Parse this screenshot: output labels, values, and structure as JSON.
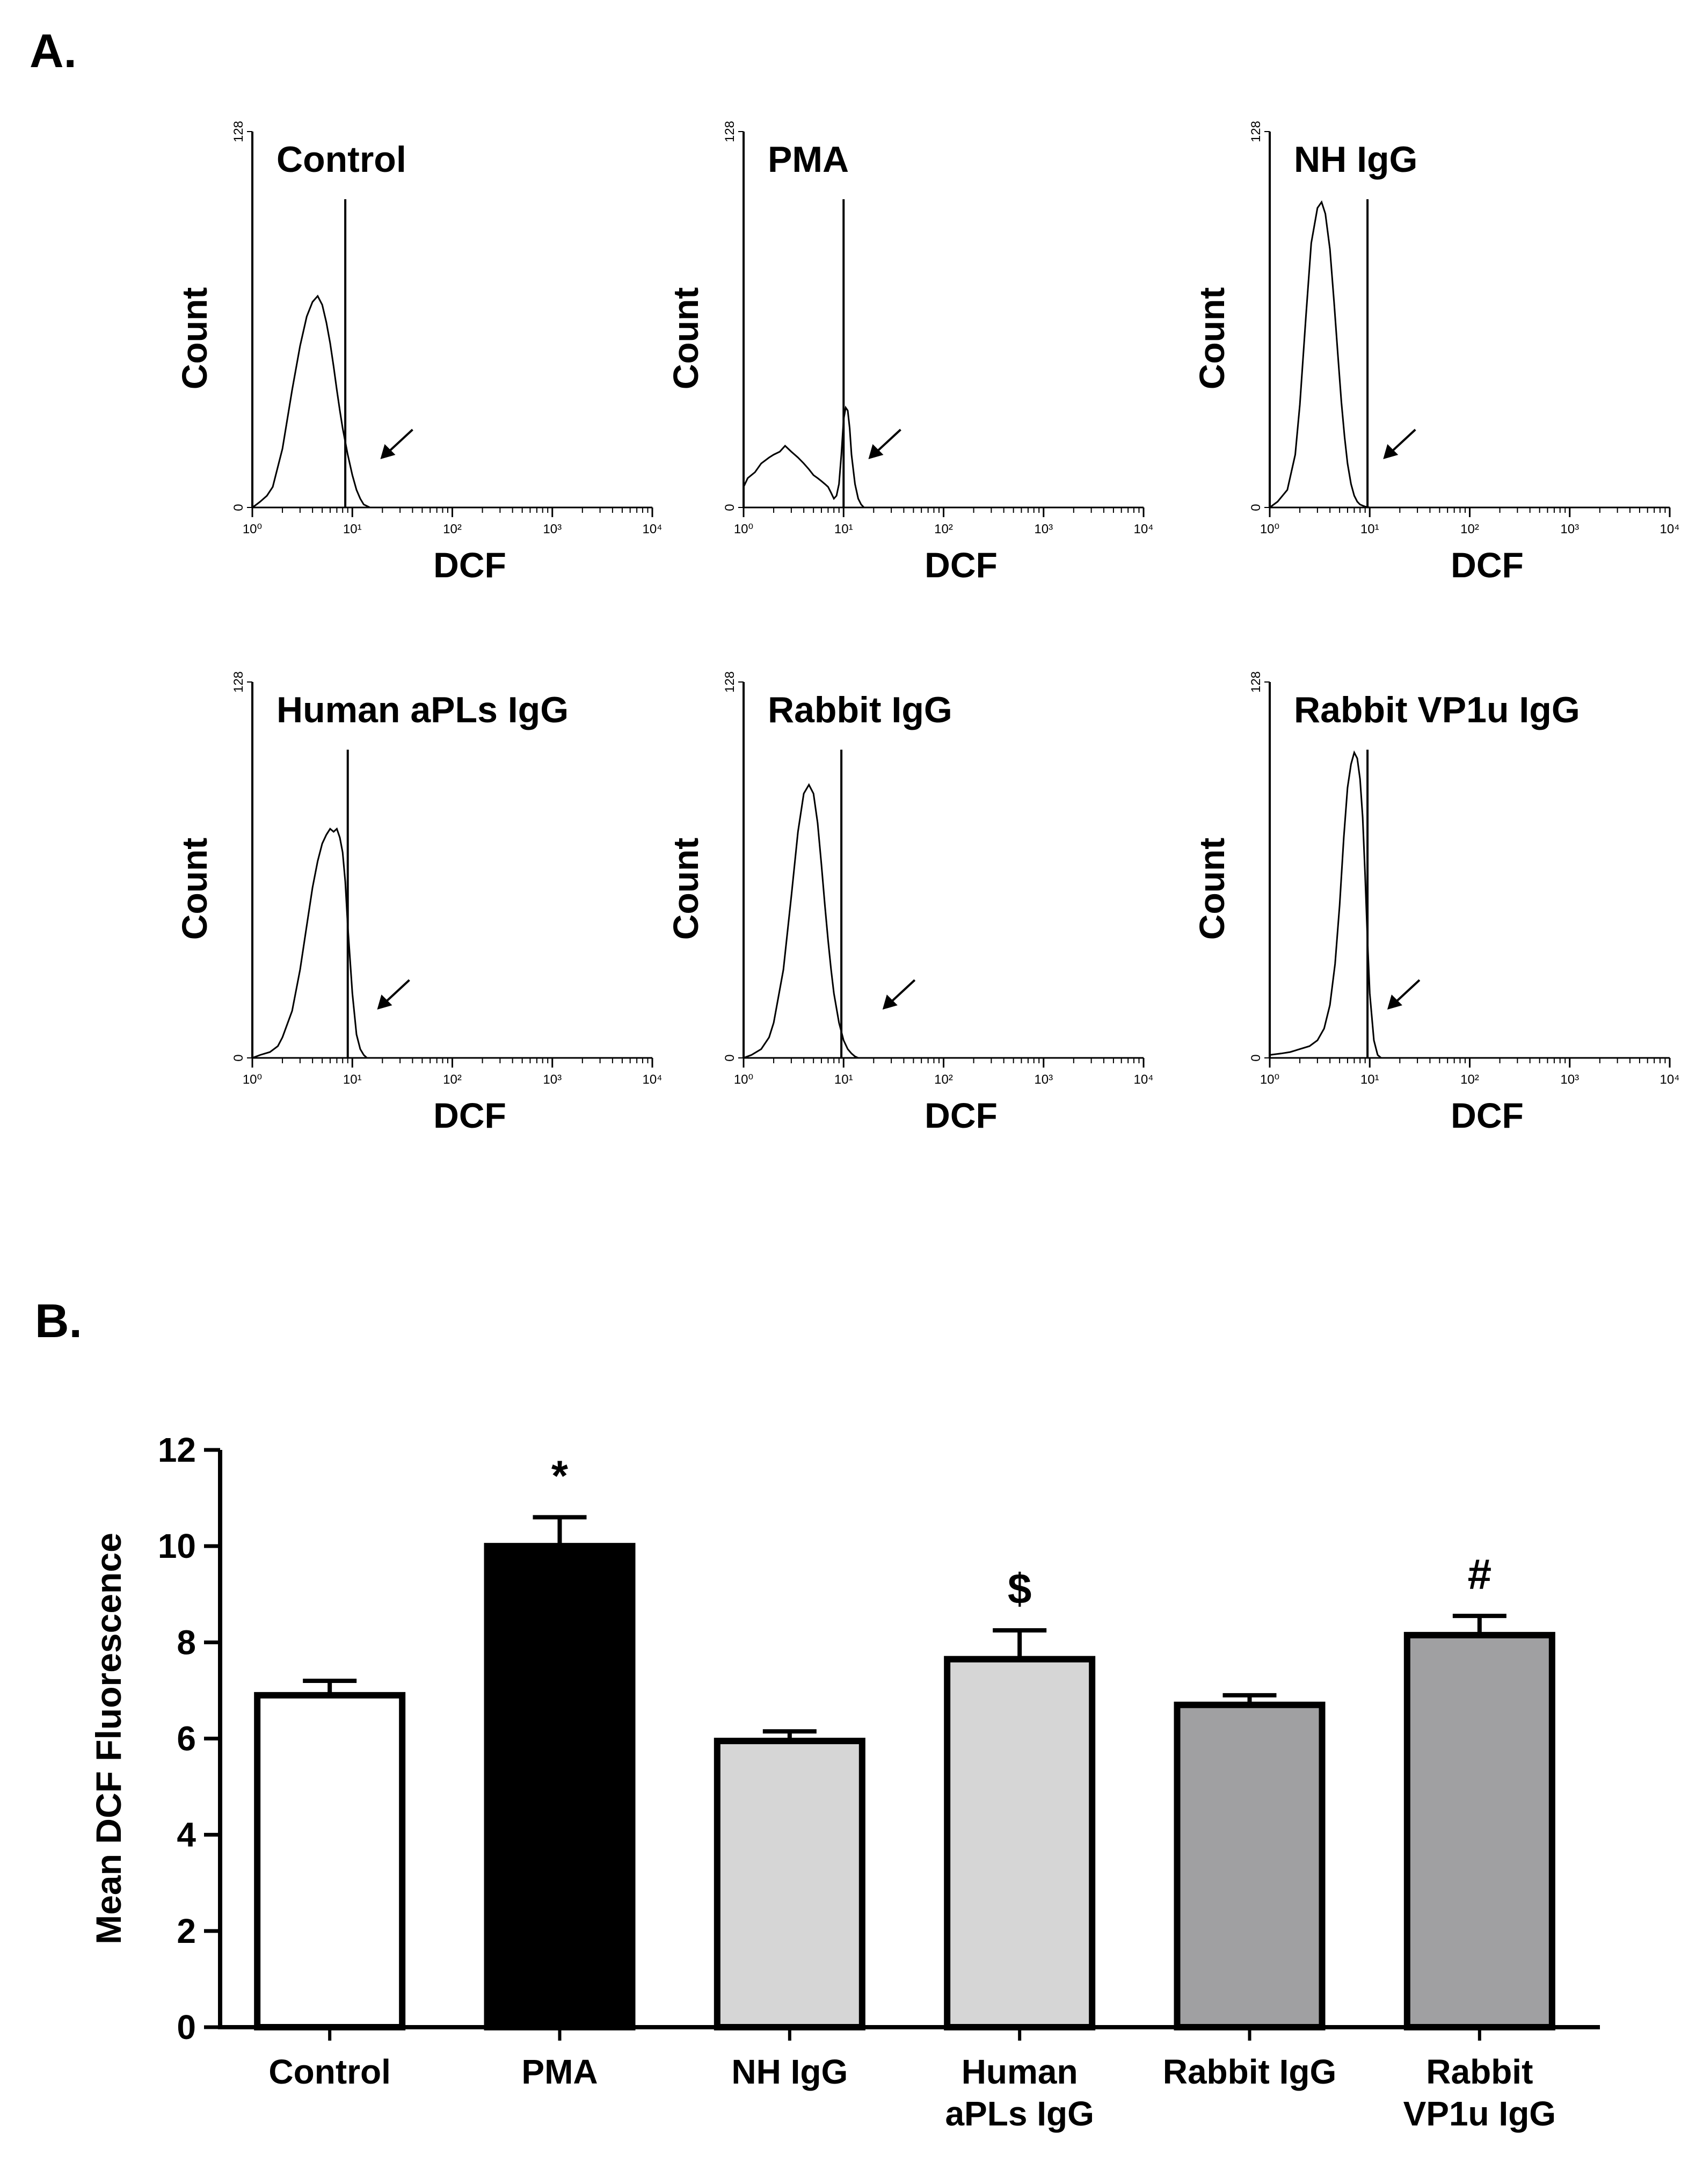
{
  "panel_a_label": "A.",
  "panel_b_label": "B.",
  "chart_data": [
    {
      "type": "line",
      "title": "Control",
      "xlabel": "DCF",
      "ylabel": "Count",
      "x_scale": "log",
      "xlim": [
        1,
        10000
      ],
      "ylim": [
        0,
        128
      ],
      "x_ticks": [
        "10⁰",
        "10¹",
        "10²",
        "10³",
        "10⁴"
      ],
      "y_ticks": [
        "0",
        "128"
      ],
      "gate": 8.5,
      "arrow_at": 14,
      "series": [
        {
          "x": [
            1.0,
            1.1,
            1.2,
            1.4,
            1.6,
            2.0,
            2.5,
            3.0,
            3.5,
            4.0,
            4.5,
            5.0,
            5.5,
            6.0,
            6.5,
            7.0,
            7.5,
            8.0,
            9.0,
            10.0,
            11.0,
            12.0,
            13.0,
            14.0,
            15.0
          ],
          "y": [
            0,
            1,
            2,
            4,
            7,
            20,
            40,
            55,
            65,
            70,
            72,
            69,
            63,
            56,
            48,
            40,
            33,
            27,
            18,
            11,
            6,
            3,
            1,
            0.5,
            0
          ]
        }
      ]
    },
    {
      "type": "line",
      "title": "PMA",
      "xlabel": "DCF",
      "ylabel": "Count",
      "x_scale": "log",
      "xlim": [
        1,
        10000
      ],
      "ylim": [
        0,
        128
      ],
      "x_ticks": [
        "10⁰",
        "10¹",
        "10²",
        "10³",
        "10⁴"
      ],
      "y_ticks": [
        "0",
        "128"
      ],
      "gate": 10,
      "arrow_at": 13,
      "series": [
        {
          "x": [
            1.0,
            1.1,
            1.3,
            1.5,
            1.8,
            2.0,
            2.3,
            2.6,
            3.0,
            3.5,
            4.0,
            4.5,
            5.0,
            5.5,
            6.0,
            6.5,
            7.0,
            7.5,
            8.0,
            8.5,
            9.0,
            9.5,
            10.0,
            10.5,
            11.0,
            11.5,
            12.0,
            13.0,
            14.0,
            15.0,
            16.0
          ],
          "y": [
            7,
            10,
            12,
            15,
            17,
            18,
            19,
            21,
            19,
            17,
            15,
            13,
            11,
            10,
            9,
            8,
            7,
            5,
            3,
            4,
            8,
            18,
            30,
            34,
            33,
            27,
            18,
            8,
            3,
            1,
            0
          ]
        }
      ]
    },
    {
      "type": "line",
      "title": "NH IgG",
      "xlabel": "DCF",
      "ylabel": "Count",
      "x_scale": "log",
      "xlim": [
        1,
        10000
      ],
      "ylim": [
        0,
        128
      ],
      "x_ticks": [
        "10⁰",
        "10¹",
        "10²",
        "10³",
        "10⁴"
      ],
      "y_ticks": [
        "0",
        "128"
      ],
      "gate": 9.5,
      "arrow_at": 10,
      "series": [
        {
          "x": [
            1.0,
            1.2,
            1.5,
            1.8,
            2.0,
            2.3,
            2.6,
            3.0,
            3.3,
            3.6,
            4.0,
            4.4,
            4.8,
            5.2,
            5.6,
            6.0,
            6.5,
            7.0,
            7.5,
            8.0,
            9.0,
            10.0
          ],
          "y": [
            0,
            2,
            6,
            18,
            35,
            65,
            90,
            102,
            104,
            100,
            88,
            70,
            52,
            36,
            24,
            15,
            8,
            4,
            2,
            1,
            0.3,
            0
          ]
        }
      ]
    },
    {
      "type": "line",
      "title": "Human aPLs IgG",
      "xlabel": "DCF",
      "ylabel": "Count",
      "x_scale": "log",
      "xlim": [
        1,
        10000
      ],
      "ylim": [
        0,
        128
      ],
      "x_ticks": [
        "10⁰",
        "10¹",
        "10²",
        "10³",
        "10⁴"
      ],
      "y_ticks": [
        "0",
        "128"
      ],
      "gate": 9,
      "arrow_at": 13,
      "series": [
        {
          "x": [
            1.0,
            1.2,
            1.5,
            1.8,
            2.0,
            2.5,
            3.0,
            3.5,
            4.0,
            4.5,
            5.0,
            5.5,
            6.0,
            6.5,
            7.0,
            7.5,
            8.0,
            8.5,
            9.0,
            10.0,
            11.0,
            12.0,
            13.0,
            14.0
          ],
          "y": [
            0,
            1,
            2,
            4,
            7,
            16,
            30,
            45,
            58,
            67,
            73,
            76,
            78,
            77,
            78,
            75,
            70,
            60,
            45,
            22,
            8,
            3,
            1,
            0
          ]
        }
      ]
    },
    {
      "type": "line",
      "title": "Rabbit IgG",
      "xlabel": "DCF",
      "ylabel": "Count",
      "x_scale": "log",
      "xlim": [
        1,
        10000
      ],
      "ylim": [
        0,
        128
      ],
      "x_ticks": [
        "10⁰",
        "10¹",
        "10²",
        "10³",
        "10⁴"
      ],
      "y_ticks": [
        "0",
        "128"
      ],
      "gate": 9.5,
      "arrow_at": 18,
      "series": [
        {
          "x": [
            1.0,
            1.2,
            1.5,
            1.8,
            2.0,
            2.5,
            3.0,
            3.5,
            4.0,
            4.5,
            5.0,
            5.5,
            6.0,
            6.5,
            7.0,
            7.5,
            8.0,
            9.0,
            10.0,
            11.0,
            12.0,
            13.0,
            14.0
          ],
          "y": [
            0,
            1,
            3,
            7,
            12,
            30,
            55,
            77,
            90,
            93,
            90,
            80,
            66,
            52,
            40,
            30,
            22,
            12,
            6,
            3,
            1.5,
            0.5,
            0
          ]
        }
      ]
    },
    {
      "type": "line",
      "title": "Rabbit VP1u IgG",
      "xlabel": "DCF",
      "ylabel": "Count",
      "x_scale": "log",
      "xlim": [
        1,
        10000
      ],
      "ylim": [
        0,
        128
      ],
      "x_ticks": [
        "10⁰",
        "10¹",
        "10²",
        "10³",
        "10⁴"
      ],
      "y_ticks": [
        "0",
        "128"
      ],
      "gate": 9.5,
      "arrow_at": 11,
      "series": [
        {
          "x": [
            1.0,
            1.3,
            1.6,
            2.0,
            2.5,
            3.0,
            3.5,
            4.0,
            4.5,
            5.0,
            5.5,
            6.0,
            6.5,
            7.0,
            7.5,
            8.0,
            8.5,
            9.0,
            9.5,
            10.0,
            11.0,
            12.0,
            13.0
          ],
          "y": [
            1,
            1.5,
            2,
            3,
            4,
            6,
            10,
            18,
            32,
            52,
            75,
            92,
            100,
            104,
            102,
            95,
            82,
            62,
            40,
            22,
            6,
            1,
            0
          ]
        }
      ]
    },
    {
      "type": "bar",
      "categories": [
        "Control",
        "PMA",
        "NH IgG",
        "Human aPLs IgG",
        "Rabbit IgG",
        "Rabbit VP1u IgG"
      ],
      "category_lines": [
        [
          "Control"
        ],
        [
          "PMA"
        ],
        [
          "NH IgG"
        ],
        [
          "Human",
          "aPLs IgG"
        ],
        [
          "Rabbit IgG"
        ],
        [
          "Rabbit",
          "VP1u IgG"
        ]
      ],
      "values": [
        6.9,
        10.0,
        5.95,
        7.65,
        6.7,
        8.15
      ],
      "errors": [
        0.3,
        0.6,
        0.2,
        0.6,
        0.2,
        0.4
      ],
      "annotations": [
        "",
        "*",
        "",
        "$",
        "",
        "#"
      ],
      "bar_colors": [
        "#ffffff",
        "#000000",
        "#d6d6d6",
        "#d6d6d6",
        "#a0a0a2",
        "#a0a0a2"
      ],
      "title": "",
      "xlabel": "",
      "ylabel": "Mean DCF Fluorescence",
      "ylim": [
        0,
        12
      ],
      "yticks": [
        0,
        2,
        4,
        6,
        8,
        10,
        12
      ]
    }
  ]
}
